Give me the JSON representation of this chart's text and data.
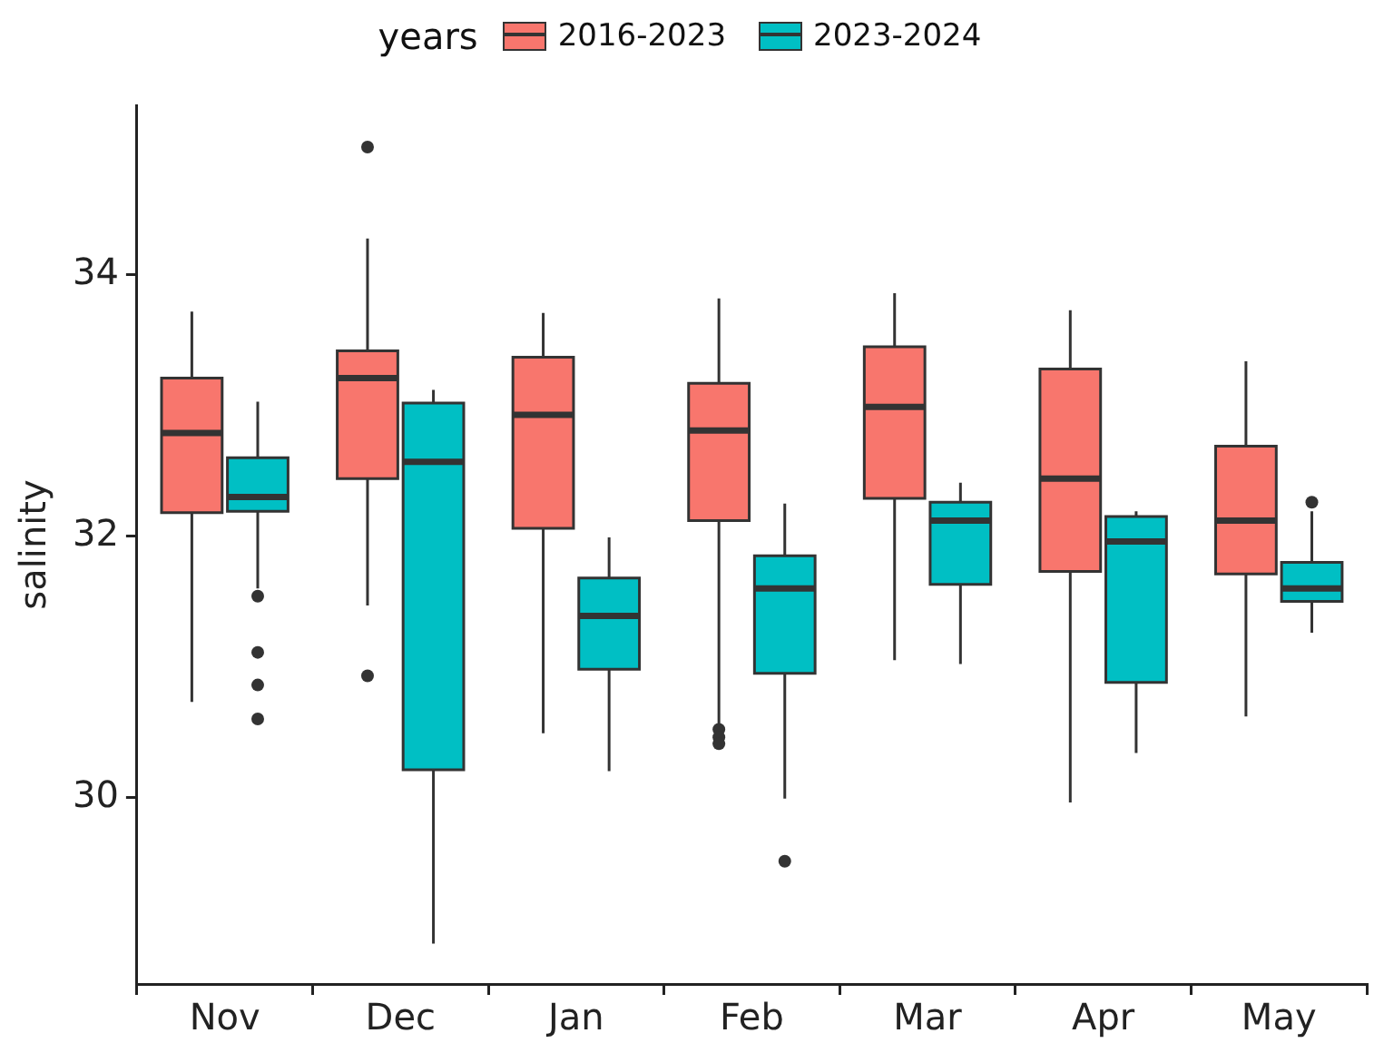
{
  "chart_data": {
    "type": "box",
    "ylabel": "salinity",
    "legend_title": "years",
    "legend": "top",
    "categories": [
      "Nov",
      "Dec",
      "Jan",
      "Feb",
      "Mar",
      "Apr",
      "May"
    ],
    "ylim": [
      28.57,
      35.3
    ],
    "yticks": [
      30,
      32,
      34
    ],
    "grid": false,
    "series": [
      {
        "name": "2016-2023",
        "color": "#f8766d",
        "boxes": [
          {
            "low": 30.73,
            "q1": 32.18,
            "median": 32.79,
            "q3": 33.21,
            "high": 33.72
          },
          {
            "low": 31.47,
            "q1": 32.44,
            "median": 33.21,
            "q3": 33.42,
            "high": 34.28,
            "outliers": [
              34.98,
              30.93
            ]
          },
          {
            "low": 30.49,
            "q1": 32.06,
            "median": 32.93,
            "q3": 33.37,
            "high": 33.71
          },
          {
            "low": 30.55,
            "q1": 32.12,
            "median": 32.81,
            "q3": 33.17,
            "high": 33.82,
            "outliers": [
              30.52,
              30.46,
              30.41
            ]
          },
          {
            "low": 31.05,
            "q1": 32.29,
            "median": 32.99,
            "q3": 33.45,
            "high": 33.86
          },
          {
            "low": 29.96,
            "q1": 31.73,
            "median": 32.44,
            "q3": 33.28,
            "high": 33.73
          },
          {
            "low": 30.62,
            "q1": 31.71,
            "median": 32.12,
            "q3": 32.69,
            "high": 33.34
          }
        ]
      },
      {
        "name": "2023-2024",
        "color": "#00bfc4",
        "boxes": [
          {
            "low": 31.6,
            "q1": 32.19,
            "median": 32.3,
            "q3": 32.6,
            "high": 33.03,
            "outliers": [
              31.54,
              31.11,
              30.86,
              30.6
            ]
          },
          {
            "low": 28.88,
            "q1": 30.21,
            "median": 32.57,
            "q3": 33.02,
            "high": 33.12
          },
          {
            "low": 30.2,
            "q1": 30.98,
            "median": 31.39,
            "q3": 31.68,
            "high": 31.99
          },
          {
            "low": 29.99,
            "q1": 30.95,
            "median": 31.6,
            "q3": 31.85,
            "high": 32.25,
            "outliers": [
              29.51
            ]
          },
          {
            "low": 31.02,
            "q1": 31.63,
            "median": 32.12,
            "q3": 32.26,
            "high": 32.41
          },
          {
            "low": 30.34,
            "q1": 30.88,
            "median": 31.96,
            "q3": 32.15,
            "high": 32.19
          },
          {
            "low": 31.26,
            "q1": 31.5,
            "median": 31.6,
            "q3": 31.8,
            "high": 32.19,
            "outliers": [
              32.26
            ]
          }
        ]
      }
    ]
  }
}
